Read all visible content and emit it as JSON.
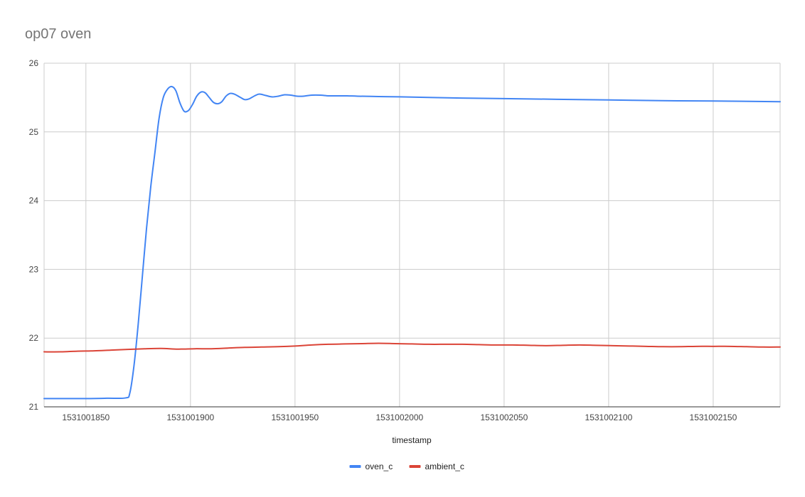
{
  "chart_data": {
    "type": "line",
    "title": "op07 oven",
    "xlabel": "timestamp",
    "ylabel": "",
    "xlim": [
      1531001830,
      1531002182
    ],
    "ylim": [
      21,
      26
    ],
    "x_ticks": [
      1531001850,
      1531001900,
      1531001950,
      1531002000,
      1531002050,
      1531002100,
      1531002150
    ],
    "y_ticks": [
      21,
      22,
      23,
      24,
      25,
      26
    ],
    "grid": true,
    "legend_position": "bottom",
    "series": [
      {
        "name": "oven_c",
        "color": "#4285f4",
        "points": [
          [
            1531001830,
            21.12
          ],
          [
            1531001850,
            21.12
          ],
          [
            1531001860,
            21.125
          ],
          [
            1531001869,
            21.13
          ],
          [
            1531001871,
            21.2
          ],
          [
            1531001873,
            21.6
          ],
          [
            1531001875,
            22.2
          ],
          [
            1531001877,
            22.9
          ],
          [
            1531001879,
            23.6
          ],
          [
            1531001881,
            24.2
          ],
          [
            1531001883,
            24.7
          ],
          [
            1531001885,
            25.2
          ],
          [
            1531001887,
            25.5
          ],
          [
            1531001889,
            25.62
          ],
          [
            1531001891,
            25.66
          ],
          [
            1531001893,
            25.6
          ],
          [
            1531001895,
            25.42
          ],
          [
            1531001897,
            25.3
          ],
          [
            1531001899,
            25.31
          ],
          [
            1531001901,
            25.4
          ],
          [
            1531001903,
            25.52
          ],
          [
            1531001905,
            25.58
          ],
          [
            1531001907,
            25.57
          ],
          [
            1531001909,
            25.5
          ],
          [
            1531001911,
            25.43
          ],
          [
            1531001913,
            25.41
          ],
          [
            1531001915,
            25.44
          ],
          [
            1531001917,
            25.52
          ],
          [
            1531001919,
            25.56
          ],
          [
            1531001921,
            25.55
          ],
          [
            1531001924,
            25.5
          ],
          [
            1531001926,
            25.47
          ],
          [
            1531001928,
            25.48
          ],
          [
            1531001931,
            25.53
          ],
          [
            1531001933,
            25.55
          ],
          [
            1531001936,
            25.53
          ],
          [
            1531001939,
            25.51
          ],
          [
            1531001942,
            25.52
          ],
          [
            1531001945,
            25.54
          ],
          [
            1531001948,
            25.535
          ],
          [
            1531001951,
            25.52
          ],
          [
            1531001954,
            25.52
          ],
          [
            1531001958,
            25.535
          ],
          [
            1531001962,
            25.535
          ],
          [
            1531001966,
            25.525
          ],
          [
            1531001970,
            25.525
          ],
          [
            1531001975,
            25.525
          ],
          [
            1531001980,
            25.52
          ],
          [
            1531001990,
            25.515
          ],
          [
            1531002000,
            25.51
          ],
          [
            1531002025,
            25.495
          ],
          [
            1531002050,
            25.485
          ],
          [
            1531002075,
            25.475
          ],
          [
            1531002100,
            25.465
          ],
          [
            1531002125,
            25.455
          ],
          [
            1531002150,
            25.45
          ],
          [
            1531002182,
            25.44
          ]
        ]
      },
      {
        "name": "ambient_c",
        "color": "#db4437",
        "points": [
          [
            1531001830,
            21.8
          ],
          [
            1531001838,
            21.8
          ],
          [
            1531001846,
            21.81
          ],
          [
            1531001854,
            21.815
          ],
          [
            1531001862,
            21.825
          ],
          [
            1531001870,
            21.835
          ],
          [
            1531001878,
            21.845
          ],
          [
            1531001886,
            21.85
          ],
          [
            1531001894,
            21.84
          ],
          [
            1531001902,
            21.845
          ],
          [
            1531001910,
            21.845
          ],
          [
            1531001918,
            21.855
          ],
          [
            1531001926,
            21.865
          ],
          [
            1531001934,
            21.87
          ],
          [
            1531001942,
            21.875
          ],
          [
            1531001950,
            21.885
          ],
          [
            1531001958,
            21.9
          ],
          [
            1531001966,
            21.91
          ],
          [
            1531001974,
            21.915
          ],
          [
            1531001982,
            21.92
          ],
          [
            1531001990,
            21.925
          ],
          [
            1531001998,
            21.92
          ],
          [
            1531002006,
            21.915
          ],
          [
            1531002014,
            21.91
          ],
          [
            1531002022,
            21.91
          ],
          [
            1531002030,
            21.91
          ],
          [
            1531002038,
            21.905
          ],
          [
            1531002046,
            21.9
          ],
          [
            1531002054,
            21.9
          ],
          [
            1531002062,
            21.895
          ],
          [
            1531002070,
            21.89
          ],
          [
            1531002078,
            21.895
          ],
          [
            1531002086,
            21.9
          ],
          [
            1531002094,
            21.895
          ],
          [
            1531002102,
            21.89
          ],
          [
            1531002110,
            21.885
          ],
          [
            1531002118,
            21.88
          ],
          [
            1531002126,
            21.875
          ],
          [
            1531002134,
            21.875
          ],
          [
            1531002142,
            21.88
          ],
          [
            1531002150,
            21.88
          ],
          [
            1531002158,
            21.88
          ],
          [
            1531002166,
            21.875
          ],
          [
            1531002174,
            21.87
          ],
          [
            1531002182,
            21.87
          ]
        ]
      }
    ]
  }
}
